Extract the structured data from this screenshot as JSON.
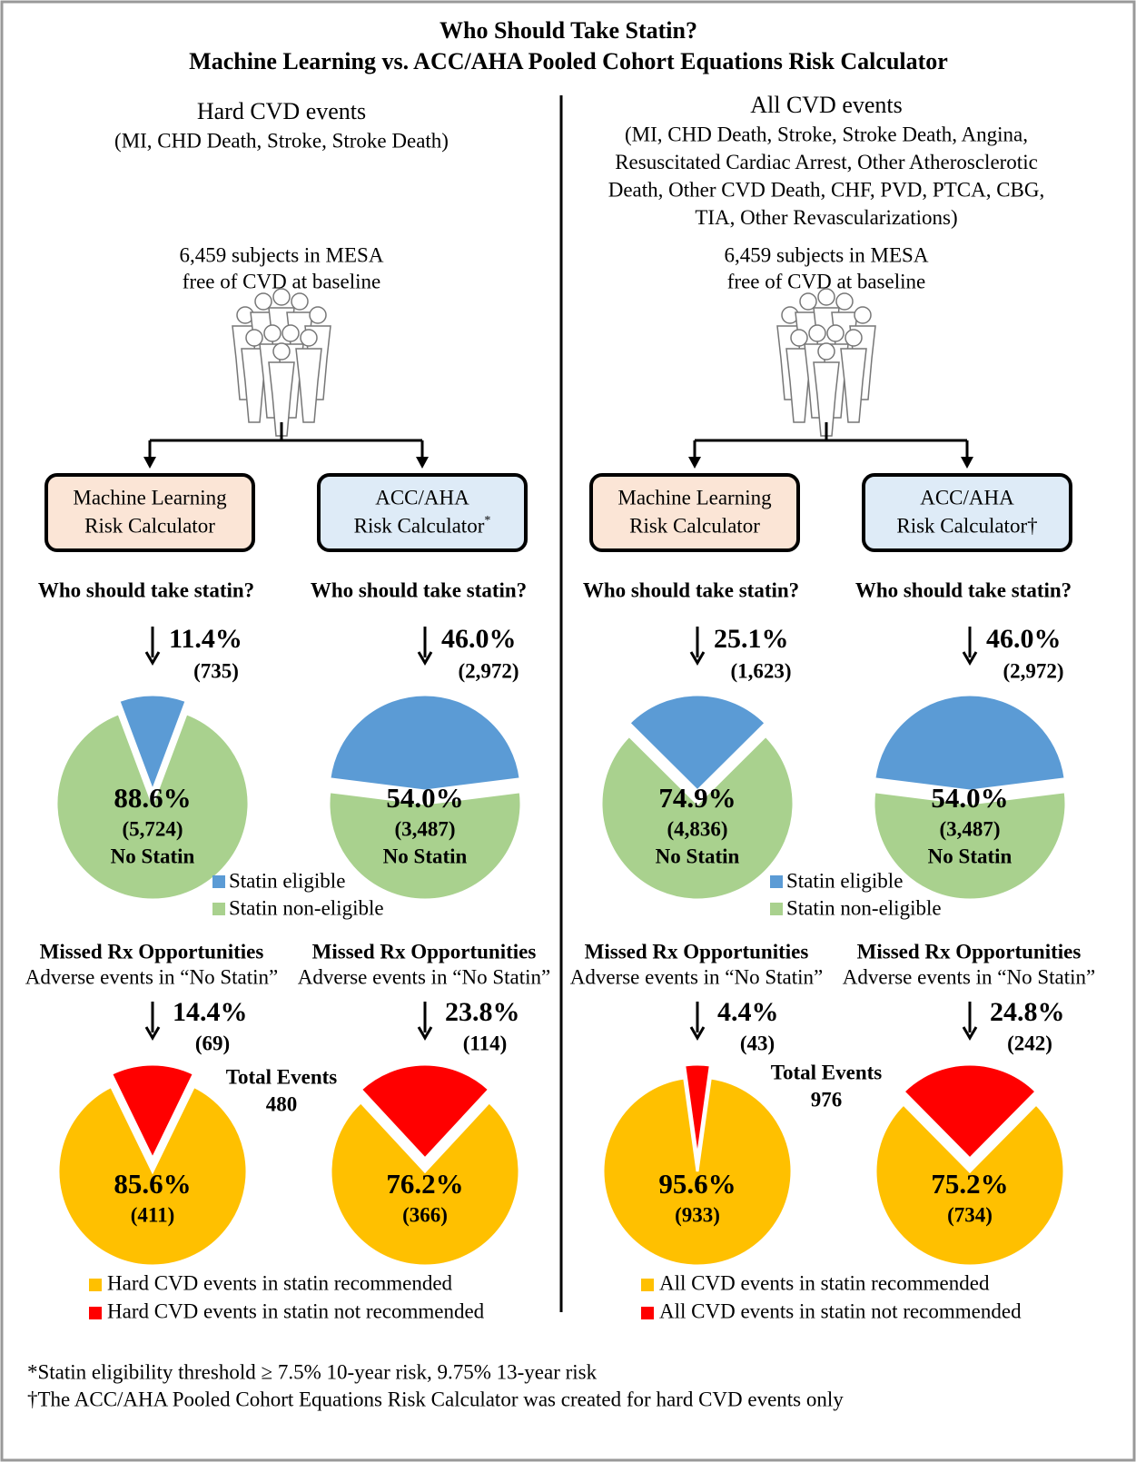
{
  "title": "Who Should Take Statin?",
  "subtitle": "Machine Learning vs. ACC/AHA Pooled Cohort Equations Risk Calculator",
  "panels": [
    {
      "heading": "Hard CVD events",
      "events": [
        "(MI, CHD Death, Stroke, Stroke Death)"
      ],
      "cohort": [
        "6,459 subjects in MESA",
        "free of CVD at baseline"
      ],
      "statin_colors": [
        "#5b9bd5",
        "#a9d18e"
      ],
      "events_colors": [
        "#ff0000",
        "#ffc000"
      ],
      "statin_legend": [
        "Statin eligible",
        "Statin non-eligible"
      ],
      "events_legend": [
        "Hard CVD events in statin recommended",
        "Hard CVD events in statin not recommended"
      ],
      "total_label": "Total Events",
      "total": 480,
      "calculators": [
        {
          "label": [
            "Machine Learning",
            "Risk Calculator"
          ],
          "question": "Who should take statin?",
          "statin": {
            "values": [
              11.4,
              88.6
            ],
            "value_labels": [
              "11.4%",
              "88.6%"
            ],
            "count_labels": [
              "(735)",
              "(5,724)"
            ],
            "note": "No Statin"
          },
          "missed_title": "Missed Rx Opportunities",
          "missed_subtitle": "Adverse events in “No Statin”",
          "events": {
            "values": [
              14.4,
              85.6
            ],
            "value_labels": [
              "14.4%",
              "85.6%"
            ],
            "count_labels": [
              "(69)",
              "(411)"
            ]
          }
        },
        {
          "label": [
            "ACC/AHA",
            "Risk Calculator"
          ],
          "sup": "*",
          "question": "Who should take statin?",
          "statin": {
            "values": [
              46.0,
              54.0
            ],
            "value_labels": [
              "46.0%",
              "54.0%"
            ],
            "count_labels": [
              "(2,972)",
              "(3,487)"
            ],
            "note": "No Statin"
          },
          "missed_title": "Missed Rx Opportunities",
          "missed_subtitle": "Adverse events in “No Statin”",
          "events": {
            "values": [
              23.8,
              76.2
            ],
            "value_labels": [
              "23.8%",
              "76.2%"
            ],
            "count_labels": [
              "(114)",
              "(366)"
            ]
          }
        }
      ]
    },
    {
      "heading": "All CVD events",
      "events": [
        "(MI, CHD Death, Stroke, Stroke Death,  Angina,",
        "Resuscitated Cardiac Arrest, Other Atherosclerotic",
        "Death, Other CVD Death, CHF, PVD, PTCA, CBG,",
        "TIA, Other Revascularizations)"
      ],
      "cohort": [
        "6,459 subjects in MESA",
        "free of CVD at baseline"
      ],
      "statin_colors": [
        "#5b9bd5",
        "#a9d18e"
      ],
      "events_colors": [
        "#ff0000",
        "#ffc000"
      ],
      "statin_legend": [
        "Statin eligible",
        "Statin non-eligible"
      ],
      "events_legend": [
        "All CVD events in statin recommended",
        "All CVD events in statin not recommended"
      ],
      "total_label": "Total Events",
      "total": 976,
      "calculators": [
        {
          "label": [
            "Machine Learning",
            "Risk Calculator"
          ],
          "question": "Who should take statin?",
          "statin": {
            "values": [
              25.1,
              74.9
            ],
            "value_labels": [
              "25.1%",
              "74.9%"
            ],
            "count_labels": [
              "(1,623)",
              "(4,836)"
            ],
            "note": "No Statin"
          },
          "missed_title": "Missed Rx Opportunities",
          "missed_subtitle": "Adverse events in “No Statin”",
          "events": {
            "values": [
              4.4,
              95.6
            ],
            "value_labels": [
              "4.4%",
              "95.6%"
            ],
            "count_labels": [
              "(43)",
              "(933)"
            ]
          }
        },
        {
          "label": [
            "ACC/AHA",
            "Risk Calculator†"
          ],
          "question": "Who should take statin?",
          "statin": {
            "values": [
              46.0,
              54.0
            ],
            "value_labels": [
              "46.0%",
              "54.0%"
            ],
            "count_labels": [
              "(2,972)",
              "(3,487)"
            ],
            "note": "No Statin"
          },
          "missed_title": "Missed Rx Opportunities",
          "missed_subtitle": "Adverse events in “No Statin”",
          "events": {
            "values": [
              24.8,
              75.2
            ],
            "value_labels": [
              "24.8%",
              "75.2%"
            ],
            "count_labels": [
              "(242)",
              "(734)"
            ]
          }
        }
      ]
    }
  ],
  "footnotes": [
    "*Statin eligibility threshold ≥ 7.5% 10-year risk, 9.75% 13-year risk",
    "†The ACC/AHA Pooled Cohort Equations Risk Calculator was created for hard CVD events only"
  ]
}
